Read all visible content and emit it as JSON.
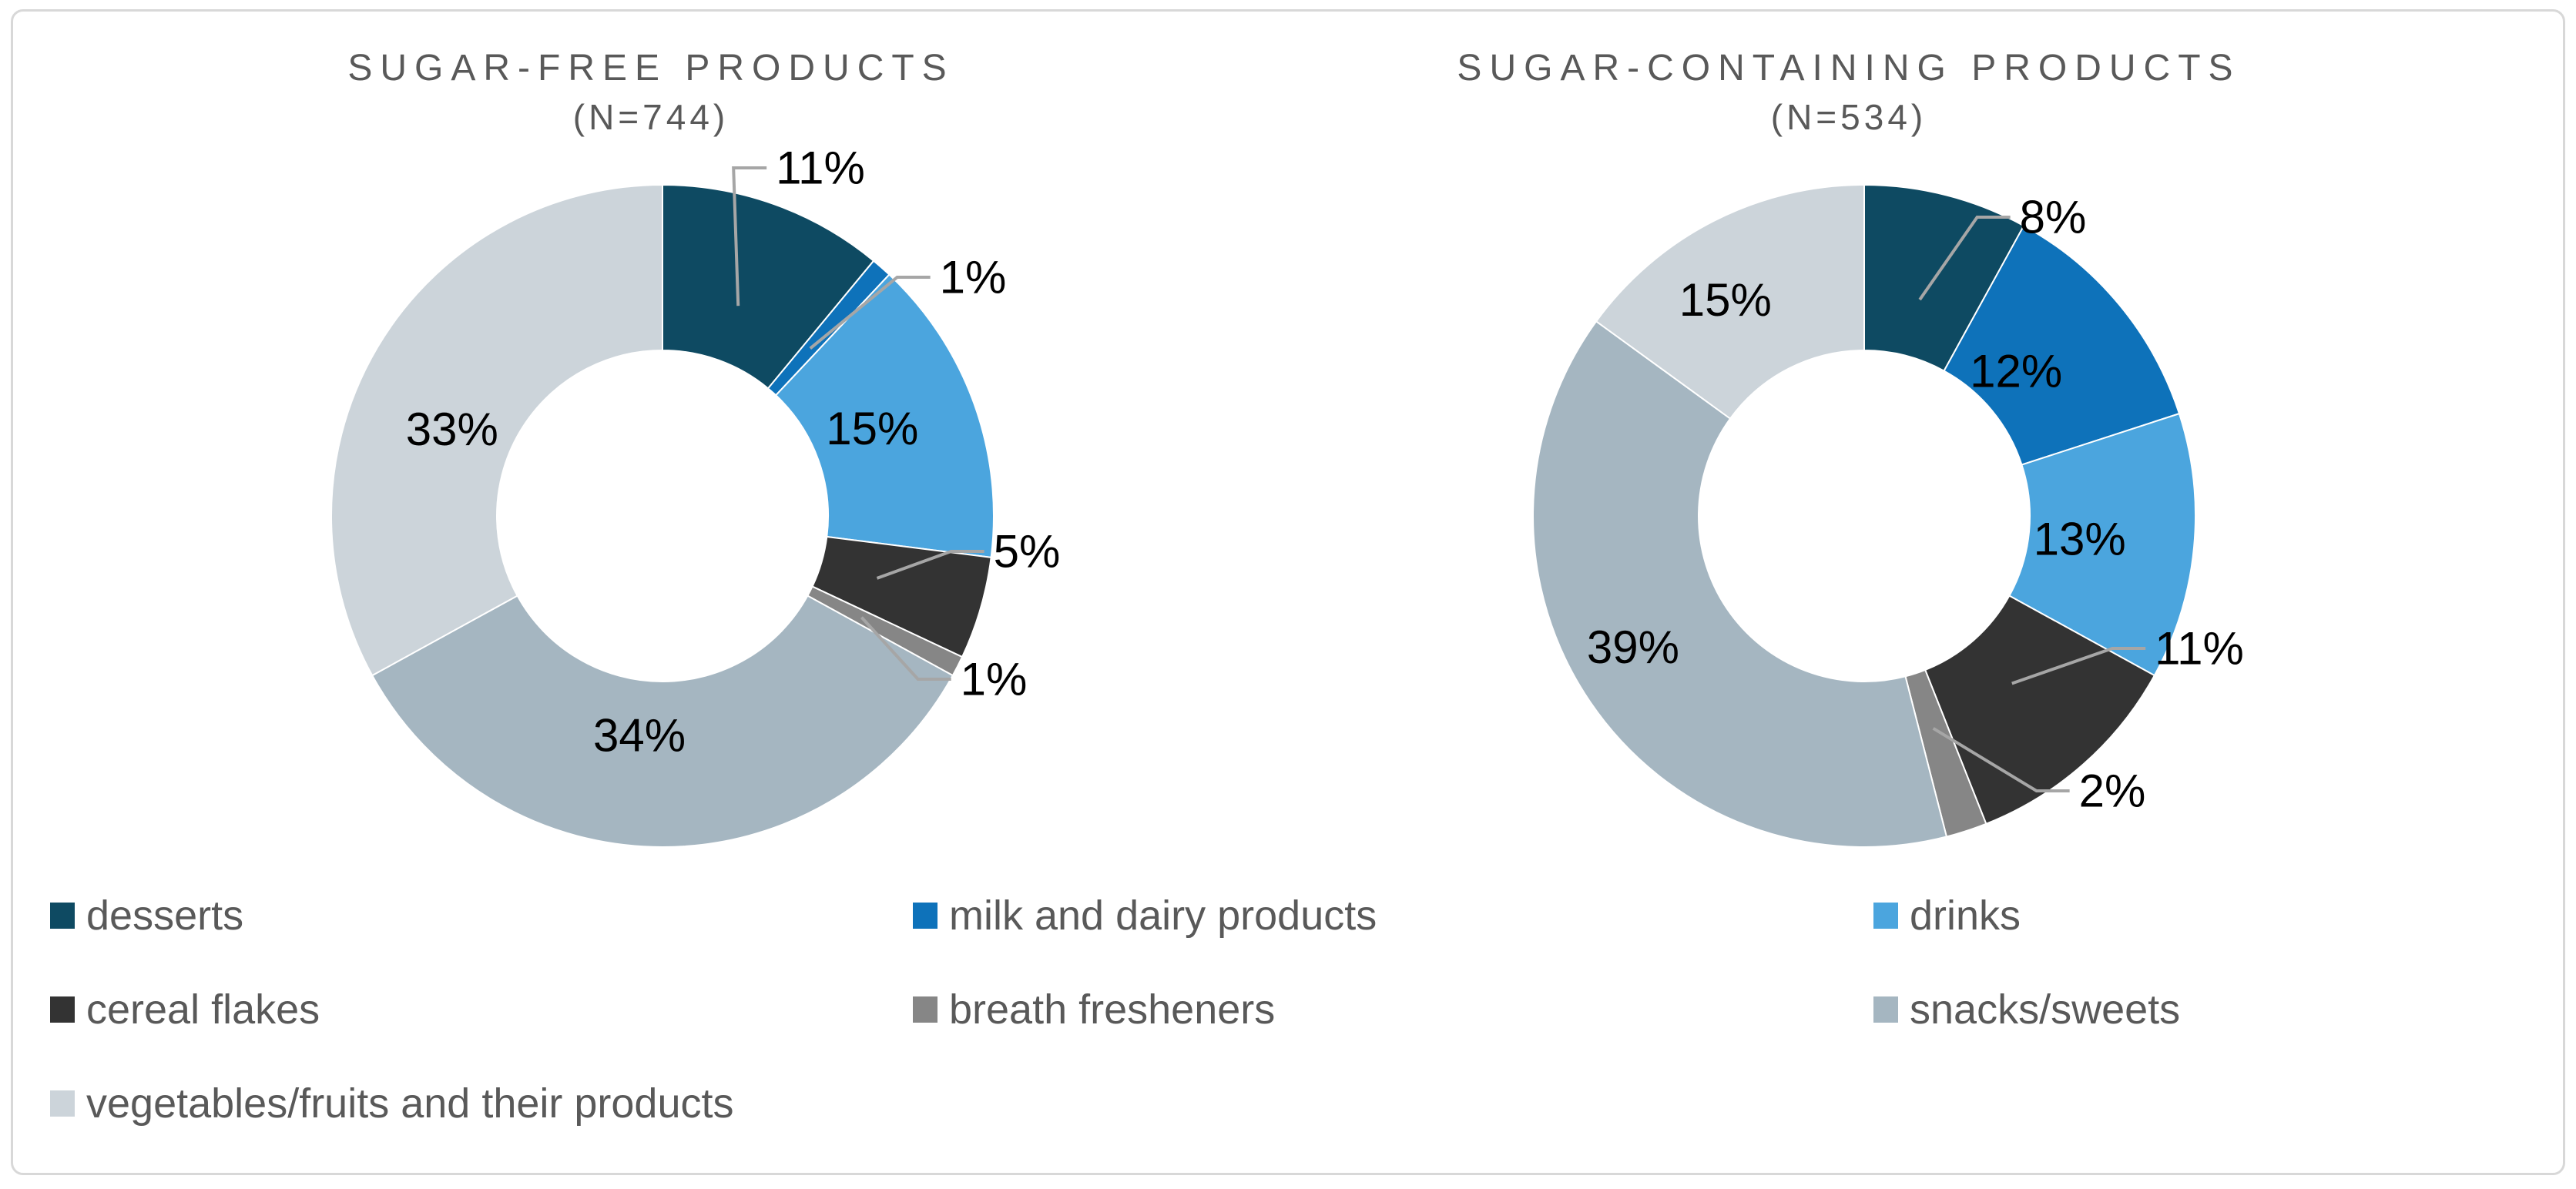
{
  "figure": {
    "background": "#FFFFFF",
    "border_color": "#D8D8D8",
    "title_color": "#595959",
    "data_label_color": "#000000",
    "leader_line_color": "#A6A6A6"
  },
  "chart_data": [
    {
      "type": "donut",
      "title": "SUGAR-FREE PRODUCTS",
      "subtitle": "(N=744)",
      "n": 744,
      "categories": [
        "desserts",
        "milk and dairy products",
        "drinks",
        "cereal flakes",
        "breath fresheners",
        "snacks/sweets",
        "vegetables/fruits and their products"
      ],
      "values": [
        11,
        1,
        15,
        5,
        1,
        34,
        33
      ],
      "labels": [
        "11%",
        "1%",
        "15%",
        "5%",
        "1%",
        "34%",
        "33%"
      ],
      "label_placement": [
        "outside",
        "outside",
        "inside",
        "outside",
        "outside",
        "inside",
        "inside"
      ],
      "colors": [
        "#0E4A62",
        "#0E72BA",
        "#4BA5DE",
        "#333333",
        "#868686",
        "#A5B6C1",
        "#CCD4DA"
      ],
      "start_angle_deg": 0,
      "direction": "clockwise",
      "inner_radius_ratio": 0.5,
      "legend_position": "bottom"
    },
    {
      "type": "donut",
      "title": "SUGAR-CONTAINING PRODUCTS",
      "subtitle": "(N=534)",
      "n": 534,
      "categories": [
        "desserts",
        "milk and dairy products",
        "drinks",
        "cereal flakes",
        "breath fresheners",
        "snacks/sweets",
        "vegetables/fruits and their products"
      ],
      "values": [
        8,
        12,
        13,
        11,
        2,
        39,
        15
      ],
      "labels": [
        "8%",
        "12%",
        "13%",
        "11%",
        "2%",
        "39%",
        "15%"
      ],
      "label_placement": [
        "outside",
        "inside",
        "inside",
        "outside",
        "outside",
        "inside",
        "inside"
      ],
      "colors": [
        "#0E4A62",
        "#0E72BA",
        "#4BA5DE",
        "#333333",
        "#868686",
        "#A5B6C1",
        "#CCD4DA"
      ],
      "start_angle_deg": 0,
      "direction": "clockwise",
      "inner_radius_ratio": 0.5,
      "legend_position": "bottom"
    }
  ],
  "legend": {
    "text_color": "#595959",
    "items": [
      {
        "label": "desserts",
        "color": "#0E4A62"
      },
      {
        "label": "milk and dairy products",
        "color": "#0E72BA"
      },
      {
        "label": "drinks",
        "color": "#4BA5DE"
      },
      {
        "label": "cereal flakes",
        "color": "#333333"
      },
      {
        "label": "breath fresheners",
        "color": "#868686"
      },
      {
        "label": "snacks/sweets",
        "color": "#A5B6C1"
      },
      {
        "label": "vegetables/fruits and their products",
        "color": "#CCD4DA"
      }
    ]
  }
}
